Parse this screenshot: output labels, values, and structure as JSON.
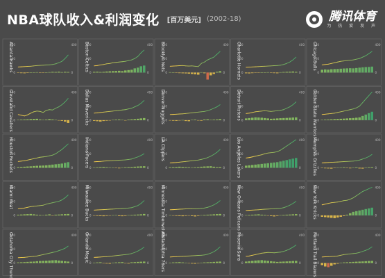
{
  "header": {
    "title": "NBA球队收入&利润变化",
    "unit": "[百万美元]",
    "years": "(2002-18)"
  },
  "brand": {
    "name": "腾讯体育",
    "slogan": "为 热 爱 发 声"
  },
  "colors": {
    "background": "#4a4a4a",
    "panel_border": "#6a6a6a",
    "revenue_line_start": "#ffd24a",
    "revenue_line_end": "#4caf6a",
    "profit_positive": "#9fbf5a",
    "profit_positive_high": "#3f9f6a",
    "profit_negative": "#d9b54a",
    "profit_deep_negative": "#d06a4a"
  },
  "chart_data": {
    "type": "small-multiples (line + bar)",
    "series_meaning": [
      "line: revenue",
      "bars: profit"
    ],
    "x": [
      2002,
      2003,
      2004,
      2005,
      2006,
      2007,
      2008,
      2009,
      2010,
      2011,
      2012,
      2013,
      2014,
      2015,
      2016,
      2017,
      2018
    ],
    "ylim": [
      -100,
      400
    ],
    "y_ticks": [
      400,
      200,
      0
    ],
    "teams": [
      {
        "name": "Atlanta Hawks",
        "revenue": [
          80,
          82,
          85,
          88,
          90,
          95,
          100,
          102,
          105,
          108,
          110,
          115,
          125,
          140,
          160,
          200,
          250
        ],
        "profit": [
          -5,
          -8,
          -10,
          -6,
          2,
          4,
          5,
          -3,
          -5,
          2,
          6,
          10,
          8,
          12,
          6,
          10,
          8
        ]
      },
      {
        "name": "Boston Celtics",
        "revenue": [
          95,
          100,
          108,
          115,
          125,
          130,
          140,
          145,
          150,
          155,
          160,
          170,
          180,
          200,
          230,
          280,
          320
        ],
        "profit": [
          10,
          12,
          8,
          10,
          15,
          18,
          20,
          22,
          25,
          20,
          30,
          35,
          40,
          60,
          70,
          90,
          100
        ]
      },
      {
        "name": "Brooklyn Nets",
        "revenue": [
          90,
          92,
          95,
          98,
          100,
          95,
          92,
          95,
          90,
          85,
          130,
          150,
          180,
          200,
          220,
          260,
          300
        ],
        "profit": [
          5,
          3,
          -5,
          -8,
          -10,
          -12,
          -15,
          -20,
          -25,
          -30,
          5,
          -10,
          -100,
          -40,
          -20,
          10,
          20
        ]
      },
      {
        "name": "Charlotte Hornets",
        "revenue": [
          75,
          78,
          80,
          82,
          85,
          88,
          90,
          92,
          95,
          98,
          100,
          105,
          115,
          130,
          150,
          180,
          220
        ],
        "profit": [
          -10,
          -12,
          -8,
          -5,
          -3,
          0,
          2,
          5,
          -5,
          -8,
          -10,
          5,
          8,
          10,
          12,
          15,
          10
        ]
      },
      {
        "name": "Chicago Bulls",
        "revenue": [
          110,
          115,
          120,
          130,
          140,
          150,
          160,
          165,
          170,
          175,
          180,
          190,
          200,
          220,
          240,
          270,
          300
        ],
        "profit": [
          40,
          45,
          42,
          48,
          50,
          52,
          55,
          58,
          60,
          62,
          60,
          65,
          70,
          75,
          78,
          80,
          85
        ]
      },
      {
        "name": "Cleveland Cavaliers",
        "revenue": [
          80,
          70,
          60,
          75,
          100,
          120,
          130,
          125,
          110,
          140,
          150,
          145,
          170,
          190,
          220,
          260,
          310
        ],
        "profit": [
          5,
          8,
          10,
          12,
          15,
          18,
          20,
          10,
          5,
          8,
          15,
          10,
          5,
          -5,
          -10,
          -20,
          -40
        ]
      },
      {
        "name": "Dallas Mavericks",
        "revenue": [
          100,
          105,
          110,
          115,
          120,
          125,
          130,
          135,
          140,
          145,
          150,
          160,
          170,
          190,
          210,
          240,
          280
        ],
        "profit": [
          -10,
          -15,
          -20,
          -12,
          -8,
          -5,
          5,
          8,
          10,
          5,
          -5,
          8,
          12,
          15,
          20,
          25,
          30
        ]
      },
      {
        "name": "Denver Nuggets",
        "revenue": [
          80,
          82,
          85,
          88,
          90,
          95,
          100,
          105,
          110,
          115,
          120,
          125,
          135,
          150,
          170,
          190,
          220
        ],
        "profit": [
          -5,
          -8,
          -10,
          -5,
          2,
          -12,
          -15,
          5,
          8,
          -5,
          -8,
          10,
          12,
          5,
          8,
          10,
          15
        ]
      },
      {
        "name": "Detroit Pistons",
        "revenue": [
          95,
          100,
          110,
          120,
          125,
          130,
          135,
          130,
          125,
          130,
          135,
          140,
          150,
          170,
          190,
          220,
          260
        ],
        "profit": [
          25,
          30,
          35,
          40,
          38,
          35,
          30,
          25,
          20,
          22,
          25,
          28,
          30,
          32,
          35,
          38,
          40
        ]
      },
      {
        "name": "Golden State Warriors",
        "revenue": [
          80,
          85,
          90,
          95,
          100,
          110,
          120,
          130,
          140,
          150,
          160,
          175,
          200,
          250,
          300,
          350,
          400
        ],
        "profit": [
          5,
          8,
          10,
          12,
          15,
          18,
          20,
          22,
          25,
          28,
          30,
          35,
          40,
          60,
          80,
          100,
          120
        ]
      },
      {
        "name": "Houston Rockets",
        "revenue": [
          90,
          95,
          100,
          110,
          120,
          130,
          140,
          150,
          155,
          160,
          170,
          180,
          200,
          230,
          260,
          300,
          340
        ],
        "profit": [
          10,
          12,
          15,
          18,
          20,
          25,
          28,
          30,
          32,
          35,
          40,
          45,
          50,
          55,
          60,
          70,
          80
        ]
      },
      {
        "name": "Indiana Pacers",
        "revenue": [
          85,
          88,
          90,
          95,
          98,
          100,
          102,
          105,
          108,
          110,
          112,
          118,
          125,
          140,
          155,
          175,
          200
        ],
        "profit": [
          5,
          8,
          10,
          12,
          8,
          5,
          3,
          -5,
          -8,
          5,
          8,
          10,
          12,
          15,
          18,
          20,
          22
        ]
      },
      {
        "name": "LA Clippers",
        "revenue": [
          70,
          72,
          75,
          80,
          85,
          90,
          95,
          100,
          105,
          110,
          120,
          130,
          145,
          165,
          190,
          220,
          260
        ],
        "profit": [
          8,
          10,
          12,
          15,
          12,
          10,
          8,
          5,
          8,
          10,
          15,
          18,
          20,
          22,
          15,
          10,
          12
        ]
      },
      {
        "name": "Los Angeles Lakers",
        "revenue": [
          140,
          145,
          155,
          165,
          175,
          185,
          200,
          210,
          215,
          220,
          230,
          250,
          280,
          310,
          340,
          370,
          400
        ],
        "profit": [
          30,
          35,
          40,
          45,
          50,
          55,
          60,
          65,
          70,
          75,
          80,
          90,
          100,
          110,
          120,
          130,
          140
        ]
      },
      {
        "name": "Memphis Grizzlies",
        "revenue": [
          70,
          72,
          75,
          78,
          80,
          82,
          85,
          88,
          90,
          92,
          95,
          100,
          110,
          125,
          140,
          160,
          190
        ],
        "profit": [
          -5,
          -8,
          -10,
          -12,
          -5,
          2,
          5,
          8,
          -5,
          -8,
          5,
          8,
          -10,
          -12,
          5,
          8,
          10
        ]
      },
      {
        "name": "Miami Heat",
        "revenue": [
          95,
          100,
          105,
          115,
          125,
          130,
          135,
          140,
          145,
          160,
          170,
          180,
          190,
          200,
          220,
          250,
          290
        ],
        "profit": [
          10,
          12,
          15,
          18,
          20,
          15,
          10,
          8,
          5,
          10,
          15,
          -5,
          10,
          12,
          15,
          18,
          20
        ]
      },
      {
        "name": "Milwaukee Bucks",
        "revenue": [
          75,
          78,
          80,
          82,
          85,
          88,
          90,
          92,
          95,
          98,
          100,
          105,
          110,
          125,
          140,
          170,
          210
        ],
        "profit": [
          -5,
          -8,
          -10,
          -12,
          -8,
          -5,
          3,
          5,
          -10,
          -12,
          -8,
          5,
          8,
          10,
          12,
          15,
          20
        ]
      },
      {
        "name": "Minnesota Timberwolves",
        "revenue": [
          80,
          82,
          85,
          88,
          90,
          92,
          95,
          95,
          92,
          95,
          100,
          105,
          115,
          130,
          150,
          175,
          210
        ],
        "profit": [
          5,
          -5,
          -8,
          -10,
          -12,
          -8,
          -5,
          -10,
          -15,
          -8,
          5,
          8,
          10,
          12,
          15,
          18,
          20
        ]
      },
      {
        "name": "New Orleans Pelicans",
        "revenue": [
          70,
          72,
          75,
          78,
          80,
          85,
          88,
          90,
          92,
          95,
          98,
          100,
          110,
          125,
          145,
          170,
          200
        ],
        "profit": [
          5,
          8,
          10,
          12,
          15,
          10,
          8,
          -5,
          -10,
          -15,
          -8,
          5,
          8,
          10,
          12,
          15,
          18
        ]
      },
      {
        "name": "New York Knicks",
        "revenue": [
          150,
          160,
          170,
          180,
          185,
          190,
          200,
          210,
          215,
          230,
          250,
          280,
          310,
          340,
          360,
          380,
          400
        ],
        "profit": [
          -20,
          -25,
          -30,
          -35,
          -40,
          -30,
          -20,
          -10,
          10,
          30,
          50,
          60,
          70,
          80,
          90,
          100,
          110
        ]
      },
      {
        "name": "Oklahoma City Thunder",
        "revenue": [
          75,
          78,
          80,
          85,
          90,
          95,
          100,
          110,
          120,
          130,
          140,
          150,
          160,
          175,
          190,
          210,
          240
        ],
        "profit": [
          8,
          10,
          12,
          15,
          18,
          20,
          25,
          28,
          30,
          32,
          35,
          38,
          40,
          35,
          30,
          25,
          20
        ]
      },
      {
        "name": "Orlando Magic",
        "revenue": [
          80,
          82,
          85,
          88,
          90,
          95,
          100,
          105,
          110,
          115,
          120,
          125,
          135,
          150,
          170,
          195,
          225
        ],
        "profit": [
          5,
          8,
          10,
          -5,
          -8,
          -10,
          5,
          8,
          10,
          12,
          -5,
          -8,
          10,
          12,
          15,
          18,
          20
        ]
      },
      {
        "name": "Philadelphia 76ers",
        "revenue": [
          85,
          88,
          90,
          92,
          95,
          98,
          100,
          102,
          105,
          108,
          110,
          115,
          125,
          140,
          160,
          190,
          230
        ],
        "profit": [
          5,
          8,
          10,
          12,
          8,
          5,
          -5,
          -8,
          -10,
          -5,
          5,
          8,
          10,
          12,
          15,
          18,
          20
        ]
      },
      {
        "name": "Phoenix Suns",
        "revenue": [
          95,
          100,
          110,
          120,
          130,
          140,
          145,
          150,
          148,
          145,
          150,
          155,
          165,
          180,
          200,
          225,
          255
        ],
        "profit": [
          20,
          25,
          30,
          35,
          38,
          40,
          35,
          30,
          25,
          20,
          15,
          18,
          20,
          22,
          25,
          28,
          30
        ]
      },
      {
        "name": "Portland Trail Blazers",
        "revenue": [
          85,
          88,
          90,
          92,
          95,
          100,
          110,
          120,
          125,
          130,
          135,
          140,
          150,
          165,
          180,
          200,
          230
        ],
        "profit": [
          -30,
          -50,
          -60,
          -40,
          -20,
          -10,
          5,
          8,
          10,
          12,
          15,
          18,
          20,
          22,
          25,
          28,
          30
        ]
      }
    ]
  }
}
